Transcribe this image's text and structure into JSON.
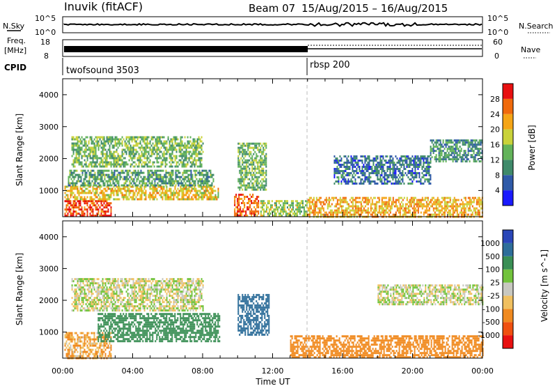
{
  "header": {
    "station": "Inuvik (fitACF)",
    "beam": "Beam 07",
    "dates": "15/Aug/2015 – 16/Aug/2015"
  },
  "top_panels": {
    "nsky_label": "N.Sky",
    "nsky_top_tick": "10^5",
    "nsky_bottom_tick": "10^0",
    "nsky_right_top_tick": "10^5",
    "nsky_right_bottom_tick": "10^0",
    "nsearch_label": "N.Search",
    "freq_label": "Freq.",
    "freq_unit": "[MHz]",
    "freq_top_tick": "18",
    "freq_bottom_tick": "8",
    "nave_top_tick": "60",
    "nave_bottom_tick": "0",
    "nave_label": "Nave",
    "cpid_label": "CPID",
    "cpid_segments": [
      {
        "name": "twofsound 3503",
        "start_hour": 0,
        "end_hour": 14.1
      },
      {
        "name": "rbsp 200",
        "start_hour": 14.1,
        "end_hour": 24
      }
    ]
  },
  "x_axis": {
    "label": "Time UT",
    "ticks": [
      "00:00",
      "04:00",
      "08:00",
      "12:00",
      "16:00",
      "20:00",
      "00:00"
    ]
  },
  "power_panel": {
    "ylabel": "Slant Range [km]",
    "yticks": [
      "1000",
      "2000",
      "3000",
      "4000"
    ],
    "colorbar_title": "Power [dB]",
    "colorbar_ticks": [
      "4",
      "8",
      "12",
      "16",
      "20",
      "24",
      "28"
    ],
    "colors": [
      "#1a1aff",
      "#2f5aa8",
      "#3f8a6a",
      "#63b35a",
      "#c9d23a",
      "#f5a516",
      "#f06a0c",
      "#e81010"
    ]
  },
  "velocity_panel": {
    "ylabel": "Slant Range [km]",
    "yticks": [
      "1000",
      "2000",
      "3000",
      "4000"
    ],
    "colorbar_title": "Velocity [m s^-1]",
    "colorbar_ticks": [
      "1000",
      "500",
      "100",
      "25",
      "-25",
      "-100",
      "-500",
      "-1000"
    ],
    "colors": [
      "#2a46b8",
      "#2e6e9a",
      "#3a8f55",
      "#72c33c",
      "#c8c8c0",
      "#f0c060",
      "#f08a20",
      "#f05010",
      "#e81010"
    ]
  },
  "chart_data": [
    {
      "type": "heatmap",
      "title": "Power",
      "xlabel": "Time UT",
      "ylabel": "Slant Range [km]",
      "xlim_hours": [
        0,
        24
      ],
      "ylim_km": [
        180,
        4500
      ],
      "colorbar": "Power [dB]",
      "colorbar_range": [
        0,
        30
      ],
      "regions": [
        {
          "t0": 0.1,
          "t1": 2.8,
          "r0": 200,
          "r1": 700,
          "value": 28
        },
        {
          "t0": 0.1,
          "t1": 8.9,
          "r0": 700,
          "r1": 1150,
          "value": 20
        },
        {
          "t0": 0.3,
          "t1": 8.6,
          "r0": 1150,
          "r1": 1650,
          "value": 12
        },
        {
          "t0": 0.5,
          "t1": 8.0,
          "r0": 1750,
          "r1": 2700,
          "value": 14
        },
        {
          "t0": 9.8,
          "t1": 11.2,
          "r0": 200,
          "r1": 900,
          "value": 26
        },
        {
          "t0": 10.0,
          "t1": 11.6,
          "r0": 1000,
          "r1": 2500,
          "value": 14
        },
        {
          "t0": 11.3,
          "t1": 14.0,
          "r0": 200,
          "r1": 700,
          "value": 16
        },
        {
          "t0": 14.0,
          "t1": 24.0,
          "r0": 200,
          "r1": 800,
          "value": 22
        },
        {
          "t0": 15.5,
          "t1": 21.0,
          "r0": 1200,
          "r1": 2100,
          "value": 8
        },
        {
          "t0": 21.0,
          "t1": 24.0,
          "r0": 1900,
          "r1": 2600,
          "value": 10
        }
      ]
    },
    {
      "type": "heatmap",
      "title": "Velocity",
      "xlabel": "Time UT",
      "ylabel": "Slant Range [km]",
      "xlim_hours": [
        0,
        24
      ],
      "ylim_km": [
        180,
        4500
      ],
      "colorbar": "Velocity [m s^-1]",
      "colorbar_range": [
        -1000,
        1000
      ],
      "regions": [
        {
          "t0": 0.1,
          "t1": 2.8,
          "r0": 200,
          "r1": 1000,
          "value": -100
        },
        {
          "t0": 2.0,
          "t1": 9.0,
          "r0": 700,
          "r1": 1600,
          "value": 300
        },
        {
          "t0": 0.5,
          "t1": 8.0,
          "r0": 1700,
          "r1": 2700,
          "value": 0
        },
        {
          "t0": 10.0,
          "t1": 11.8,
          "r0": 900,
          "r1": 2200,
          "value": 900
        },
        {
          "t0": 13.0,
          "t1": 24.0,
          "r0": 200,
          "r1": 900,
          "value": -200
        },
        {
          "t0": 18.0,
          "t1": 24.0,
          "r0": 1900,
          "r1": 2500,
          "value": 0
        }
      ]
    }
  ]
}
